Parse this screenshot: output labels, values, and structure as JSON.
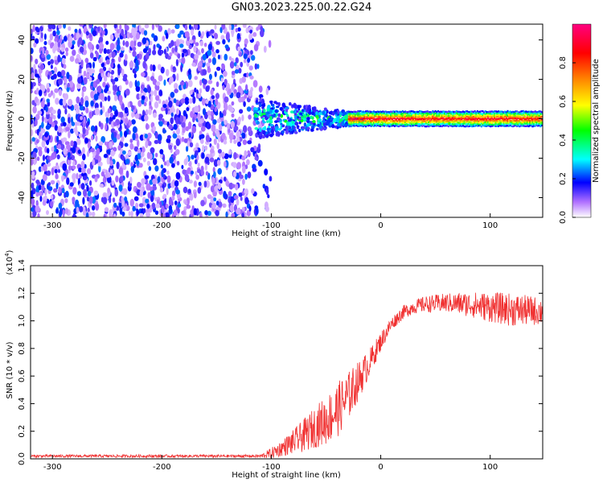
{
  "title": "GN03.2023.225.00.22.G24",
  "chart_data": [
    {
      "type": "heatmap",
      "xlabel": "Height of straight line (km)",
      "ylabel": "Frequency (Hz)",
      "xlim": [
        -320,
        148
      ],
      "ylim": [
        -50,
        48
      ],
      "xticks": [
        -300,
        -200,
        -100,
        0,
        100
      ],
      "yticks": [
        -40,
        -20,
        0,
        20,
        40
      ],
      "colorbar": {
        "label": "Normalized spectral amplitude",
        "range": [
          0.0,
          1.0
        ],
        "ticks": [
          "0.0",
          "0.2",
          "0.4",
          "0.6",
          "0.8"
        ],
        "tick_values": [
          0.0,
          0.2,
          0.4,
          0.6,
          0.8
        ],
        "colormap": [
          "#ffffff",
          "#8a2be2",
          "#0000ff",
          "#00ffff",
          "#00ff00",
          "#ffff00",
          "#ff8000",
          "#ff0000",
          "#ff0080"
        ]
      },
      "regions": [
        {
          "x": [
            -320,
            -110
          ],
          "description_level": 0.15
        },
        {
          "x": [
            -110,
            -20
          ],
          "peak_freq": 0,
          "level": 0.45
        },
        {
          "x": [
            -20,
            148
          ],
          "peak_freq": 0,
          "level": 0.9
        }
      ]
    },
    {
      "type": "line",
      "xlabel": "Height of straight line (km)",
      "ylabel": "SNR (10 * v/v)",
      "y_multiplier": "(x10",
      "y_multiplier_exp": "4",
      "y_multiplier_close": ")",
      "xlim": [
        -320,
        148
      ],
      "ylim": [
        0.0,
        1.4
      ],
      "xticks": [
        -300,
        -200,
        -100,
        0,
        100
      ],
      "yticks": [
        "0.0",
        "0.2",
        "0.4",
        "0.6",
        "0.8",
        "1.0",
        "1.2",
        "1.4"
      ],
      "ytick_values": [
        0.0,
        0.2,
        0.4,
        0.6,
        0.8,
        1.0,
        1.2,
        1.4
      ],
      "color": "#f03030",
      "series": [
        {
          "x": [
            -320,
            -250,
            -200,
            -150,
            -110,
            -100,
            -90,
            -80,
            -70,
            -60,
            -50,
            -40,
            -30,
            -20,
            -10,
            0,
            10,
            20,
            30,
            40,
            60,
            80,
            100,
            120,
            148
          ],
          "y": [
            0.02,
            0.02,
            0.02,
            0.02,
            0.02,
            0.04,
            0.08,
            0.12,
            0.17,
            0.23,
            0.28,
            0.35,
            0.45,
            0.57,
            0.7,
            0.85,
            0.98,
            1.06,
            1.1,
            1.12,
            1.13,
            1.12,
            1.1,
            1.08,
            1.07
          ],
          "noise": [
            0.01,
            0.01,
            0.01,
            0.01,
            0.01,
            0.04,
            0.06,
            0.09,
            0.12,
            0.15,
            0.18,
            0.2,
            0.18,
            0.14,
            0.1,
            0.07,
            0.05,
            0.05,
            0.05,
            0.06,
            0.07,
            0.09,
            0.11,
            0.12,
            0.1
          ]
        }
      ]
    }
  ]
}
